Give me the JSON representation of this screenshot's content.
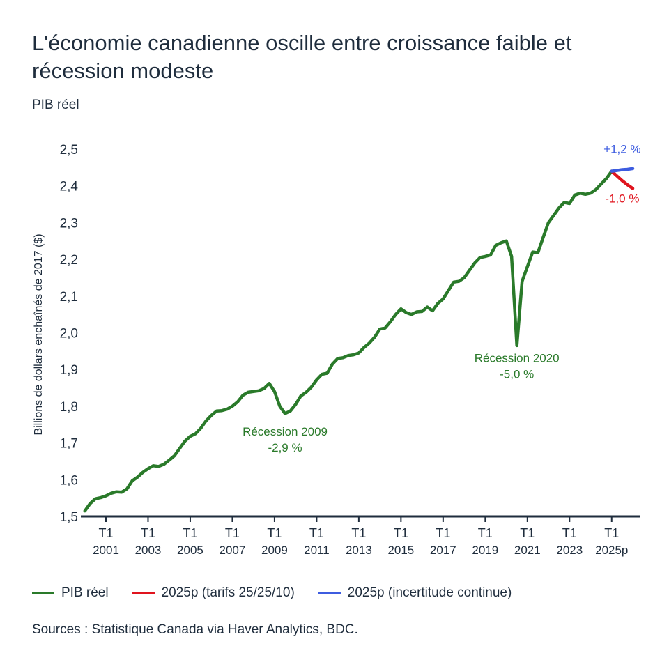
{
  "title": "L'économie canadienne oscille entre croissance faible et récession modeste",
  "subtitle": "PIB réel",
  "source": "Sources : Statistique Canada via Haver Analytics, BDC.",
  "colors": {
    "pib": "#2a7a2a",
    "tarifs": "#e0141e",
    "incertitude": "#3d5ce0",
    "axis": "#1f2d3d"
  },
  "chart_data": {
    "type": "line",
    "title": "L'économie canadienne oscille entre croissance faible et récession modeste",
    "ylabel": "Billions de dollars enchaînés de 2017 ($)",
    "ylim": [
      1.5,
      2.5
    ],
    "yticks": [
      "1,5",
      "1,6",
      "1,7",
      "1,8",
      "1,9",
      "2,0",
      "2,1",
      "2,2",
      "2,3",
      "2,4",
      "2,5"
    ],
    "ytick_values": [
      1.5,
      1.6,
      1.7,
      1.8,
      1.9,
      2.0,
      2.1,
      2.2,
      2.3,
      2.4,
      2.5
    ],
    "x_start": "2000 T1",
    "x_frequency": "quarterly",
    "xticks": [
      {
        "q": "T1",
        "year": "2001",
        "index": 4
      },
      {
        "q": "T1",
        "year": "2003",
        "index": 12
      },
      {
        "q": "T1",
        "year": "2005",
        "index": 20
      },
      {
        "q": "T1",
        "year": "2007",
        "index": 28
      },
      {
        "q": "T1",
        "year": "2009",
        "index": 36
      },
      {
        "q": "T1",
        "year": "2011",
        "index": 44
      },
      {
        "q": "T1",
        "year": "2013",
        "index": 52
      },
      {
        "q": "T1",
        "year": "2015",
        "index": 60
      },
      {
        "q": "T1",
        "year": "2017",
        "index": 68
      },
      {
        "q": "T1",
        "year": "2019",
        "index": 76
      },
      {
        "q": "T1",
        "year": "2021",
        "index": 84
      },
      {
        "q": "T1",
        "year": "2023",
        "index": 92
      },
      {
        "q": "T1",
        "year": "2025p",
        "index": 100
      }
    ],
    "grid": false,
    "legend_position": "bottom",
    "series": [
      {
        "name": "PIB réel",
        "color": "#2a7a2a",
        "start_index": 0,
        "values": [
          1.515,
          1.535,
          1.548,
          1.551,
          1.556,
          1.563,
          1.567,
          1.566,
          1.575,
          1.597,
          1.607,
          1.62,
          1.63,
          1.638,
          1.636,
          1.642,
          1.653,
          1.665,
          1.685,
          1.705,
          1.718,
          1.725,
          1.74,
          1.76,
          1.775,
          1.787,
          1.788,
          1.792,
          1.8,
          1.812,
          1.83,
          1.838,
          1.84,
          1.842,
          1.848,
          1.862,
          1.84,
          1.8,
          1.78,
          1.787,
          1.805,
          1.828,
          1.838,
          1.852,
          1.872,
          1.887,
          1.89,
          1.915,
          1.93,
          1.932,
          1.938,
          1.94,
          1.945,
          1.96,
          1.972,
          1.988,
          2.01,
          2.013,
          2.03,
          2.05,
          2.065,
          2.055,
          2.05,
          2.057,
          2.058,
          2.07,
          2.06,
          2.08,
          2.092,
          2.115,
          2.138,
          2.14,
          2.15,
          2.17,
          2.19,
          2.205,
          2.208,
          2.212,
          2.238,
          2.245,
          2.25,
          2.208,
          1.965,
          2.14,
          2.18,
          2.22,
          2.218,
          2.26,
          2.3,
          2.32,
          2.34,
          2.355,
          2.352,
          2.375,
          2.38,
          2.377,
          2.38,
          2.39,
          2.405,
          2.42,
          2.44
        ]
      },
      {
        "name": "2025p (tarifs 25/25/10)",
        "color": "#e0141e",
        "start_index": 100,
        "values": [
          2.44,
          2.427,
          2.414,
          2.403,
          2.393
        ]
      },
      {
        "name": "2025p (incertitude continue)",
        "color": "#3d5ce0",
        "start_index": 100,
        "values": [
          2.44,
          2.442,
          2.444,
          2.445,
          2.447
        ]
      }
    ],
    "annotations": [
      {
        "text": [
          "Récession 2009",
          "-2,9 %"
        ],
        "color": "#2a7a2a",
        "index": 38,
        "value": 1.72
      },
      {
        "text": [
          "Récession 2020",
          "-5,0 %"
        ],
        "color": "#2a7a2a",
        "index": 82,
        "value": 1.92
      },
      {
        "text": [
          "+1,2 %"
        ],
        "color": "#3d5ce0",
        "index": 102,
        "value": 2.49
      },
      {
        "text": [
          "-1,0 %"
        ],
        "color": "#e0141e",
        "index": 102,
        "value": 2.355
      }
    ]
  }
}
